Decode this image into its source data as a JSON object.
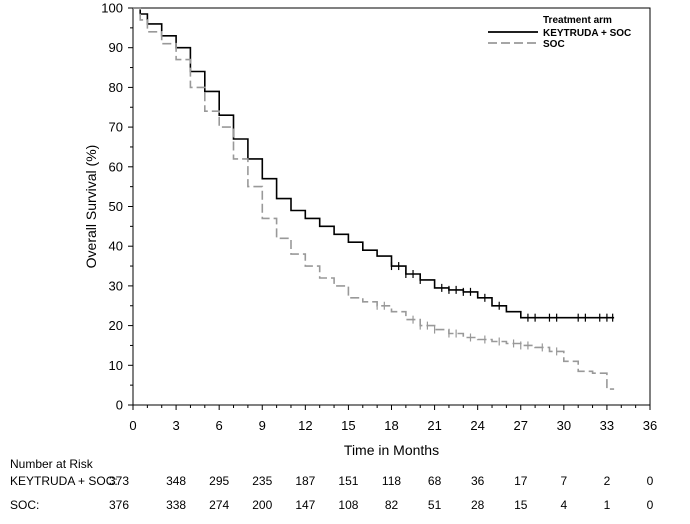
{
  "chart_data": {
    "type": "line",
    "subtype": "kaplan-meier",
    "xlabel": "Time in Months",
    "ylabel": "Overall Survival (%)",
    "xlim": [
      0,
      36
    ],
    "ylim": [
      0,
      100
    ],
    "xticks": [
      0,
      3,
      6,
      9,
      12,
      15,
      18,
      21,
      24,
      27,
      30,
      33,
      36
    ],
    "yticks": [
      0,
      10,
      20,
      30,
      40,
      50,
      60,
      70,
      80,
      90,
      100
    ],
    "grid": false,
    "legend": {
      "title": "Treatment arm",
      "position": "top-right",
      "entries": [
        "KEYTRUDA + SOC",
        "SOC"
      ]
    },
    "series": [
      {
        "name": "KEYTRUDA + SOC",
        "color": "#000000",
        "style": "solid",
        "x": [
          0,
          0.5,
          1,
          2,
          3,
          4,
          5,
          6,
          7,
          8,
          9,
          10,
          11,
          12,
          13,
          14,
          15,
          16,
          17,
          18,
          19,
          20,
          21,
          22,
          23,
          24,
          25,
          26,
          27,
          28,
          29,
          30,
          31,
          32,
          33.5
        ],
        "y": [
          100,
          98.5,
          96,
          93,
          90,
          84,
          79,
          73,
          67,
          62,
          57,
          52,
          49,
          47,
          45,
          43,
          41,
          39,
          37.5,
          35,
          33,
          31.5,
          29.5,
          29,
          28.5,
          27,
          25,
          23.5,
          22,
          22,
          22,
          22,
          22,
          22,
          22
        ],
        "censor_x": [
          18,
          18.5,
          19,
          19.5,
          20,
          21.5,
          22,
          22.5,
          23,
          23.5,
          24.5,
          25.5,
          27.5,
          28,
          29,
          29.5,
          31,
          31.5,
          32.5,
          33,
          33.4
        ]
      },
      {
        "name": "SOC",
        "color": "#999999",
        "style": "dashed",
        "x": [
          0,
          0.5,
          1,
          2,
          3,
          4,
          5,
          6,
          7,
          8,
          9,
          10,
          11,
          12,
          13,
          14,
          15,
          16,
          17,
          18,
          19,
          20,
          21,
          22,
          23,
          24,
          25,
          26,
          27,
          28,
          29,
          30,
          31,
          32,
          33,
          33.5
        ],
        "y": [
          100,
          97,
          94,
          91,
          87,
          80,
          74,
          70,
          62,
          55,
          47,
          42,
          38,
          35,
          32,
          30,
          27,
          26,
          25,
          23.5,
          21.5,
          20,
          19,
          18,
          17,
          16.5,
          16,
          15.5,
          15,
          14.5,
          13.5,
          11,
          8.5,
          8,
          4,
          4
        ],
        "censor_x": [
          17,
          17.5,
          19.5,
          20,
          20.5,
          21,
          22,
          22.5,
          23.5,
          24.5,
          25.5,
          26.5,
          27,
          27.5,
          28.5,
          29.5
        ]
      }
    ],
    "risk_table": {
      "title": "Number at Risk",
      "timepoints": [
        0,
        3,
        6,
        9,
        12,
        15,
        18,
        21,
        24,
        27,
        30,
        33,
        36
      ],
      "rows": [
        {
          "label": "KEYTRUDA + SOC:",
          "values": [
            "373",
            "348",
            "295",
            "235",
            "187",
            "151",
            "118",
            "68",
            "36",
            "17",
            "7",
            "2",
            "0"
          ]
        },
        {
          "label": "SOC:",
          "values": [
            "376",
            "338",
            "274",
            "200",
            "147",
            "108",
            "82",
            "51",
            "28",
            "15",
            "4",
            "1",
            "0"
          ]
        }
      ]
    }
  }
}
